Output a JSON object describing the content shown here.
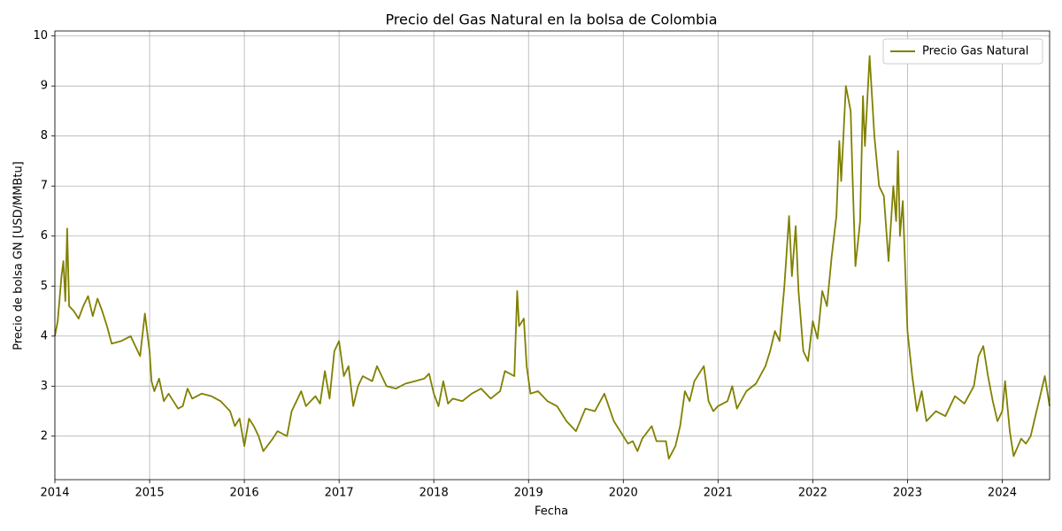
{
  "chart_data": {
    "type": "line",
    "title": "Precio del Gas Natural en la bolsa de Colombia",
    "x_label": "Fecha",
    "y_label": "Precio de bolsa GN [USD/MMBtu]",
    "x": [
      2014.0,
      2014.03,
      2014.07,
      2014.09,
      2014.11,
      2014.13,
      2014.15,
      2014.2,
      2014.25,
      2014.3,
      2014.35,
      2014.4,
      2014.45,
      2014.5,
      2014.55,
      2014.6,
      2014.7,
      2014.8,
      2014.9,
      2014.95,
      2015.0,
      2015.02,
      2015.05,
      2015.1,
      2015.15,
      2015.2,
      2015.3,
      2015.35,
      2015.4,
      2015.45,
      2015.55,
      2015.65,
      2015.75,
      2015.85,
      2015.9,
      2015.95,
      2016.0,
      2016.05,
      2016.1,
      2016.15,
      2016.2,
      2016.3,
      2016.35,
      2016.4,
      2016.45,
      2016.5,
      2016.55,
      2016.6,
      2016.65,
      2016.75,
      2016.8,
      2016.85,
      2016.9,
      2016.95,
      2017.0,
      2017.05,
      2017.1,
      2017.15,
      2017.2,
      2017.25,
      2017.35,
      2017.4,
      2017.5,
      2017.6,
      2017.7,
      2017.8,
      2017.9,
      2017.95,
      2018.0,
      2018.05,
      2018.1,
      2018.15,
      2018.2,
      2018.3,
      2018.4,
      2018.5,
      2018.6,
      2018.7,
      2018.75,
      2018.85,
      2018.88,
      2018.9,
      2018.95,
      2018.98,
      2019.02,
      2019.1,
      2019.2,
      2019.3,
      2019.4,
      2019.5,
      2019.6,
      2019.7,
      2019.8,
      2019.9,
      2020.0,
      2020.05,
      2020.1,
      2020.15,
      2020.2,
      2020.3,
      2020.35,
      2020.45,
      2020.48,
      2020.55,
      2020.6,
      2020.65,
      2020.7,
      2020.75,
      2020.85,
      2020.9,
      2020.95,
      2021.0,
      2021.1,
      2021.15,
      2021.2,
      2021.3,
      2021.4,
      2021.5,
      2021.55,
      2021.6,
      2021.65,
      2021.7,
      2021.75,
      2021.78,
      2021.82,
      2021.85,
      2021.9,
      2021.95,
      2022.0,
      2022.05,
      2022.1,
      2022.15,
      2022.2,
      2022.25,
      2022.28,
      2022.3,
      2022.35,
      2022.4,
      2022.42,
      2022.45,
      2022.5,
      2022.53,
      2022.55,
      2022.6,
      2022.65,
      2022.7,
      2022.75,
      2022.8,
      2022.85,
      2022.88,
      2022.9,
      2022.92,
      2022.95,
      2023.0,
      2023.05,
      2023.1,
      2023.15,
      2023.2,
      2023.3,
      2023.4,
      2023.5,
      2023.6,
      2023.7,
      2023.75,
      2023.8,
      2023.85,
      2023.9,
      2023.95,
      2024.0,
      2024.03,
      2024.08,
      2024.12,
      2024.2,
      2024.25,
      2024.3,
      2024.35,
      2024.4,
      2024.45,
      2024.5
    ],
    "series": [
      {
        "name": "Precio Gas Natural",
        "color": "#808000",
        "values": [
          4.0,
          4.3,
          5.2,
          5.5,
          4.7,
          6.15,
          4.6,
          4.5,
          4.35,
          4.6,
          4.8,
          4.4,
          4.75,
          4.5,
          4.2,
          3.85,
          3.9,
          4.0,
          3.6,
          4.45,
          3.7,
          3.1,
          2.9,
          3.15,
          2.7,
          2.85,
          2.55,
          2.6,
          2.95,
          2.75,
          2.85,
          2.8,
          2.7,
          2.5,
          2.2,
          2.35,
          1.8,
          2.35,
          2.2,
          2.0,
          1.7,
          1.95,
          2.1,
          2.05,
          2.0,
          2.5,
          2.7,
          2.9,
          2.6,
          2.8,
          2.65,
          3.3,
          2.75,
          3.7,
          3.9,
          3.2,
          3.4,
          2.6,
          3.0,
          3.2,
          3.1,
          3.4,
          3.0,
          2.95,
          3.05,
          3.1,
          3.15,
          3.25,
          2.85,
          2.6,
          3.1,
          2.65,
          2.75,
          2.7,
          2.85,
          2.95,
          2.75,
          2.9,
          3.3,
          3.2,
          4.9,
          4.2,
          4.35,
          3.4,
          2.85,
          2.9,
          2.7,
          2.6,
          2.3,
          2.1,
          2.55,
          2.5,
          2.85,
          2.3,
          2.0,
          1.85,
          1.9,
          1.7,
          1.95,
          2.2,
          1.9,
          1.9,
          1.55,
          1.8,
          2.2,
          2.9,
          2.7,
          3.1,
          3.4,
          2.7,
          2.5,
          2.6,
          2.7,
          3.0,
          2.55,
          2.9,
          3.05,
          3.4,
          3.7,
          4.1,
          3.9,
          5.0,
          6.4,
          5.2,
          6.2,
          4.9,
          3.7,
          3.5,
          4.3,
          3.95,
          4.9,
          4.6,
          5.6,
          6.4,
          7.9,
          7.1,
          9.0,
          8.5,
          7.2,
          5.4,
          6.3,
          8.8,
          7.8,
          9.6,
          8.0,
          7.0,
          6.8,
          5.5,
          7.0,
          6.3,
          7.7,
          6.0,
          6.7,
          4.1,
          3.2,
          2.5,
          2.9,
          2.3,
          2.5,
          2.4,
          2.8,
          2.65,
          3.0,
          3.6,
          3.8,
          3.2,
          2.7,
          2.3,
          2.5,
          3.1,
          2.1,
          1.6,
          1.95,
          1.85,
          2.0,
          2.4,
          2.8,
          3.2,
          2.6
        ]
      }
    ],
    "xlim": [
      2014,
      2024.5
    ],
    "xticks": [
      2014,
      2015,
      2016,
      2017,
      2018,
      2019,
      2020,
      2021,
      2022,
      2023,
      2024
    ],
    "ylim": [
      1.13,
      10.1
    ],
    "yticks": [
      2,
      3,
      4,
      5,
      6,
      7,
      8,
      9,
      10
    ],
    "grid": true,
    "legend": "upper right"
  }
}
